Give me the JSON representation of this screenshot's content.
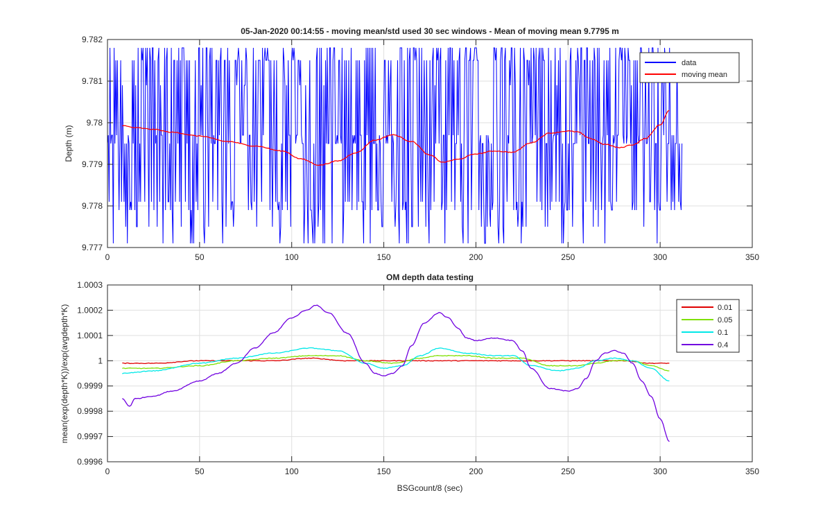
{
  "chart_data": [
    {
      "type": "line",
      "title": "05-Jan-2020 00:14:55 - moving mean/std used 30 sec windows - Mean of moving mean 9.7795 m",
      "xlabel": "",
      "ylabel": "Depth (m)",
      "xlim": [
        0,
        350
      ],
      "ylim": [
        9.777,
        9.782
      ],
      "xticks": [
        0,
        50,
        100,
        150,
        200,
        250,
        300,
        350
      ],
      "yticks": [
        9.777,
        9.778,
        9.779,
        9.78,
        9.781,
        9.782
      ],
      "ytick_labels": [
        "9.777",
        "9.778",
        "9.779",
        "9.78",
        "9.781",
        "9.782"
      ],
      "grid": true,
      "legend_position": "top-right",
      "series": [
        {
          "name": "data",
          "color": "#0000ff",
          "kind": "noisy",
          "x_range": [
            0,
            312
          ],
          "levels": [
            9.7771,
            9.7775,
            9.7779,
            9.7781,
            9.7795,
            9.7797,
            9.7809,
            9.7815,
            9.7818
          ]
        },
        {
          "name": "moving mean",
          "color": "#ff0000",
          "x": [
            8,
            15,
            25,
            35,
            50,
            65,
            80,
            95,
            105,
            115,
            125,
            135,
            145,
            155,
            165,
            175,
            182,
            190,
            200,
            210,
            220,
            230,
            240,
            250,
            255,
            262,
            270,
            278,
            285,
            292,
            300,
            305
          ],
          "y": [
            9.77993,
            9.77988,
            9.77984,
            9.77977,
            9.77968,
            9.77955,
            9.77944,
            9.77932,
            9.77913,
            9.77898,
            9.77908,
            9.77928,
            9.77958,
            9.77971,
            9.77955,
            9.77922,
            9.77905,
            9.77912,
            9.77925,
            9.77932,
            9.77929,
            9.77952,
            9.77975,
            9.7798,
            9.77978,
            9.77962,
            9.77948,
            9.7794,
            9.77947,
            9.77962,
            9.77995,
            9.7803
          ]
        }
      ]
    },
    {
      "type": "line",
      "title": "OM depth data testing",
      "xlabel": "BSGcount/8 (sec)",
      "ylabel": "mean(exp(depth*K))/exp(avgdepth*K)",
      "xlim": [
        0,
        350
      ],
      "ylim": [
        0.9996,
        1.0003
      ],
      "xticks": [
        0,
        50,
        100,
        150,
        200,
        250,
        300,
        350
      ],
      "yticks": [
        0.9996,
        0.9997,
        0.9998,
        0.9999,
        1.0,
        1.0001,
        1.0002,
        1.0003
      ],
      "ytick_labels": [
        "0.9996",
        "0.9997",
        "0.9998",
        "0.9999",
        "1",
        "1.0001",
        "1.0002",
        "1.0003"
      ],
      "grid": true,
      "legend_position": "top-right",
      "series": [
        {
          "name": "0.01",
          "color": "#e00000",
          "x": [
            8,
            25,
            50,
            70,
            90,
            110,
            130,
            145,
            155,
            180,
            200,
            220,
            240,
            260,
            280,
            295,
            305
          ],
          "y": [
            0.99999,
            0.99999,
            1.0,
            1.0,
            1.0,
            1.00001,
            1.0,
            1.0,
            1.0,
            1.0,
            1.0,
            1.0,
            1.0,
            1.0,
            1.0,
            0.99999,
            0.99999
          ]
        },
        {
          "name": "0.05",
          "color": "#7fe000",
          "x": [
            8,
            25,
            50,
            70,
            90,
            110,
            125,
            140,
            155,
            170,
            180,
            195,
            210,
            225,
            240,
            255,
            265,
            275,
            285,
            295,
            305
          ],
          "y": [
            0.99997,
            0.99997,
            0.99998,
            1.0,
            1.00001,
            1.00002,
            1.00002,
            1.0,
            0.99999,
            1.00001,
            1.00002,
            1.00002,
            1.00001,
            1.00001,
            0.99998,
            0.99998,
            0.99999,
            1.0,
            1.0,
            0.99998,
            0.99996
          ]
        },
        {
          "name": "0.1",
          "color": "#00e8e8",
          "x": [
            8,
            25,
            50,
            70,
            90,
            110,
            125,
            140,
            150,
            160,
            170,
            180,
            195,
            210,
            220,
            230,
            245,
            255,
            265,
            275,
            285,
            295,
            305
          ],
          "y": [
            0.99995,
            0.99996,
            0.99999,
            1.00001,
            1.00003,
            1.00005,
            1.00004,
            0.99999,
            0.99997,
            0.99998,
            1.00002,
            1.00005,
            1.00003,
            1.00002,
            1.00002,
            0.99998,
            0.99996,
            0.99997,
            1.0,
            1.00001,
            1.0,
            0.99997,
            0.99992
          ]
        },
        {
          "name": "0.4",
          "color": "#7000e0",
          "x": [
            8,
            12,
            15,
            25,
            35,
            50,
            60,
            70,
            80,
            90,
            100,
            108,
            113,
            120,
            130,
            140,
            145,
            150,
            155,
            160,
            165,
            172,
            180,
            185,
            190,
            195,
            200,
            210,
            220,
            225,
            230,
            240,
            250,
            255,
            260,
            265,
            270,
            275,
            280,
            285,
            290,
            295,
            300,
            305
          ],
          "y": [
            0.99985,
            0.99982,
            0.99985,
            0.99986,
            0.99988,
            0.99992,
            0.99995,
            0.99999,
            1.00005,
            1.00011,
            1.00017,
            1.0002,
            1.00022,
            1.00019,
            1.00011,
            0.99999,
            0.99995,
            0.99994,
            0.99995,
            0.99998,
            1.00006,
            1.00015,
            1.00019,
            1.00017,
            1.00013,
            1.00009,
            1.00008,
            1.00009,
            1.00008,
            1.00004,
            0.99997,
            0.99989,
            0.99988,
            0.99989,
            0.99993,
            1.0,
            1.00003,
            1.00004,
            1.00003,
            0.99999,
            0.99992,
            0.99986,
            0.99977,
            0.99968
          ]
        }
      ]
    }
  ]
}
